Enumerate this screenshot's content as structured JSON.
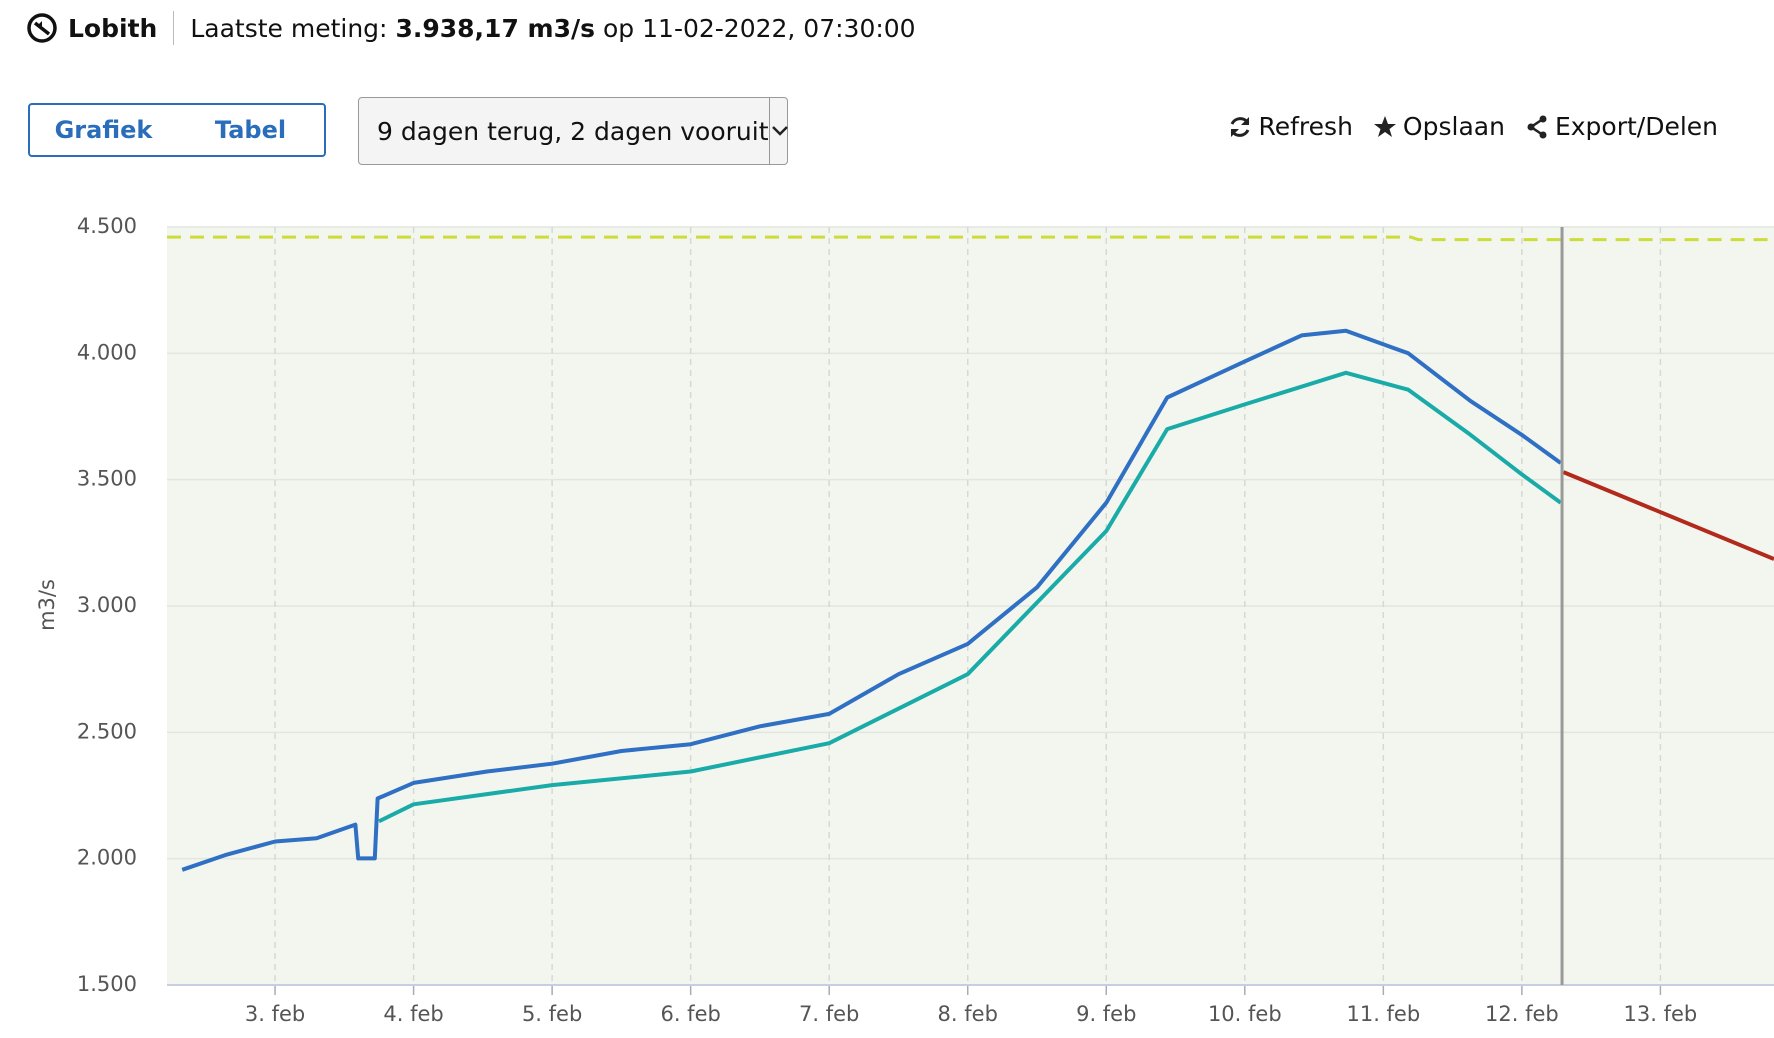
{
  "header": {
    "location": "Lobith",
    "label": "Laatste meting:",
    "value": "3.938,17 m3/s",
    "suffix": "op 11-02-2022, 07:30:00"
  },
  "toolbar": {
    "tabs": [
      "Grafiek",
      "Tabel"
    ],
    "range": "9 dagen terug, 2 dagen vooruit",
    "actions": [
      "Refresh",
      "Opslaan",
      "Export/Delen"
    ]
  },
  "chart_data": {
    "type": "line",
    "y_label": "m3/s",
    "xlim": [
      2.22,
      13.82
    ],
    "xticks": [
      {
        "value": 3,
        "label": "3. feb"
      },
      {
        "value": 4,
        "label": "4. feb"
      },
      {
        "value": 5,
        "label": "5. feb"
      },
      {
        "value": 6,
        "label": "6. feb"
      },
      {
        "value": 7,
        "label": "7. feb"
      },
      {
        "value": 8,
        "label": "8. feb"
      },
      {
        "value": 9,
        "label": "9. feb"
      },
      {
        "value": 10,
        "label": "10. feb"
      },
      {
        "value": 11,
        "label": "11. feb"
      },
      {
        "value": 12,
        "label": "12. feb"
      },
      {
        "value": 13,
        "label": "13. feb"
      }
    ],
    "ylim": [
      1500,
      4500
    ],
    "yticks": [
      {
        "value": 1500,
        "label": "1.500"
      },
      {
        "value": 2000,
        "label": "2.000"
      },
      {
        "value": 2500,
        "label": "2.500"
      },
      {
        "value": 3000,
        "label": "3.000"
      },
      {
        "value": 3500,
        "label": "3.500"
      },
      {
        "value": 4000,
        "label": "4.000"
      },
      {
        "value": 4500,
        "label": "4.500"
      }
    ],
    "grid": true,
    "current_x": 12.29,
    "series": [
      {
        "color": "#cddc39",
        "dashed": true,
        "x": [
          2.22,
          11.2,
          11.25,
          13.82
        ],
        "values": [
          4460,
          4460,
          4450,
          4450
        ]
      },
      {
        "color": "#2f6fc4",
        "x": [
          2.33,
          2.64,
          3,
          3.3,
          3.58,
          3.6,
          3.72,
          3.74,
          4,
          4.53,
          5,
          5.5,
          6,
          6.5,
          7,
          7.5,
          8,
          8.5,
          9,
          9.44,
          10,
          10.41,
          10.73,
          11.18,
          11.63,
          12,
          12.28
        ],
        "values": [
          1956,
          2014,
          2068,
          2081,
          2135,
          2001,
          2001,
          2238,
          2300,
          2345,
          2376,
          2426,
          2453,
          2524,
          2573,
          2730,
          2850,
          3074,
          3409,
          3825,
          3968,
          4071,
          4089,
          4000,
          3811,
          3677,
          3566
        ]
      },
      {
        "color": "#1aaba8",
        "x": [
          3.75,
          4,
          5,
          6,
          7,
          8,
          9,
          9.44,
          10,
          10.73,
          11.18,
          11.63,
          12,
          12.28
        ],
        "values": [
          2148,
          2215,
          2291,
          2345,
          2457,
          2730,
          3297,
          3700,
          3798,
          3923,
          3856,
          3677,
          3521,
          3409
        ]
      },
      {
        "color": "#b22a1c",
        "x": [
          12.3,
          13.82
        ],
        "values": [
          3530,
          3186
        ]
      }
    ]
  }
}
